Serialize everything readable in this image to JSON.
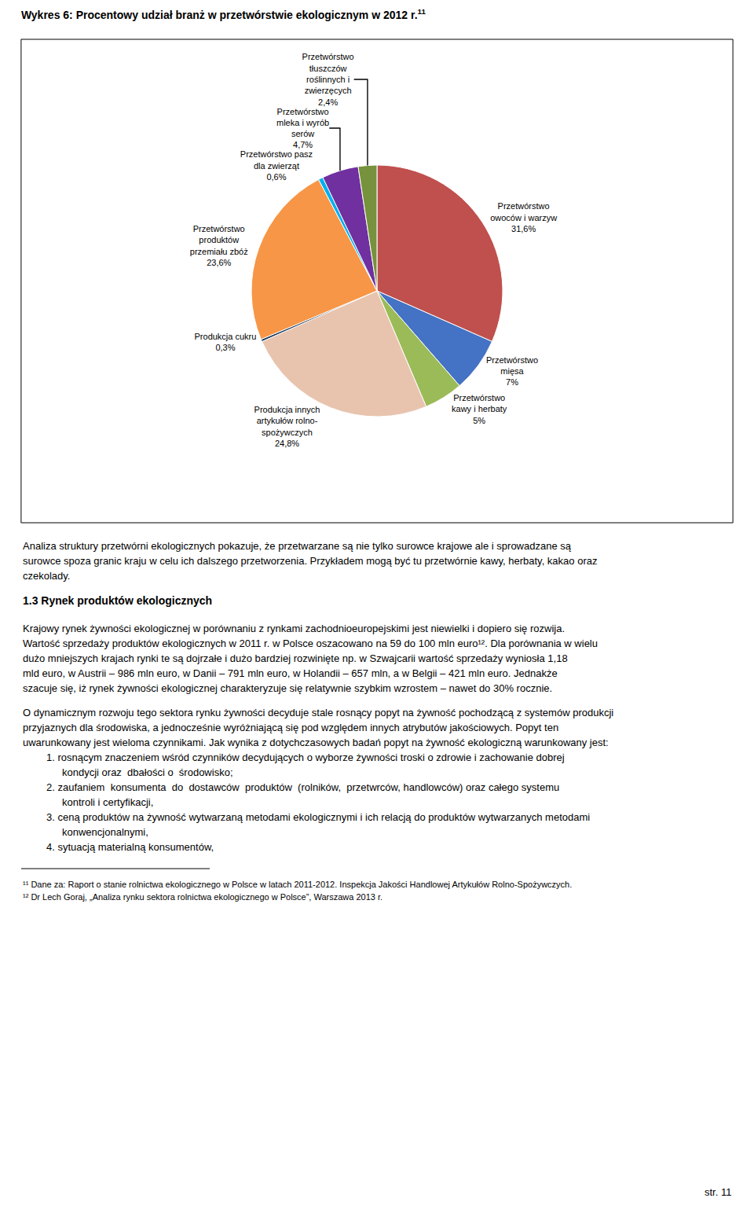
{
  "chart_data": {
    "type": "pie",
    "title": "Wykres 6: Procentowy udział branż w przetwórstwie ekologicznym w 2012 r.",
    "categories": [
      "Przetwórstwo\nowoców i warzyw",
      "Przetwórstwo\nmięsa",
      "Przetwórstwo\nkawy i herbaty",
      "Produkcja innych\nartykułów rolno-\nspożywczych",
      "Produkcja cukru",
      "Przetwórstwo\nproduktów\nprzemiału zbóż",
      "Przetwórstwo pasz\ndla zwierząt",
      "Przetwórstwo\nmleka i wyrób\nserów",
      "Przetwórstwo\ntłuszczów\nroślinnych i\nzwierzęcych"
    ],
    "values": [
      31.6,
      7.0,
      5.0,
      24.8,
      0.3,
      23.6,
      0.6,
      4.7,
      2.4
    ],
    "value_labels": [
      "31,6%",
      "7%",
      "5%",
      "24,8%",
      "0,3%",
      "23,6%",
      "0,6%",
      "4,7%",
      "2,4%"
    ],
    "colors": [
      "#C0504D",
      "#4472C4",
      "#9BBB59",
      "#E8C4AE",
      "#17375E",
      "#F79646",
      "#00B0F0",
      "#7030A0",
      "#76923C"
    ],
    "data_labels": true,
    "annotations": [
      "11",
      "Analiza struktury przetwórni ekologicznych pokazuje, że przetwarzane są nie tylko surowce krajowe ale i sprowadzane są surowce spoza granic kraju w celu ich dalszego przetworzenia. Przykładem mogą być tu przetwórnie kawy, herbaty, kakao oraz czekolady.",
      "1.3 Rynek produktów ekologicznych",
      "Krajowy rynek żywności ekologicznej w porównaniu z rynkami zachodnioeuropejskimi jest niewielki i dopiero się rozwija. Wartość sprzedaży produktów ekologicznych w 2011 r. w Polsce oszacowano na 59 do 100 mln euro¹². Dla porównania w wielu dużo mniejszych krajach rynki te są dojrzałe i dużo bardziej rozwinięte np. w Szwajcarii wartość sprzedaży wyniosła 1,18 mld euro, w Austrii – 986 mln euro, w Danii – 791 mln euro, w Holandii – 657 mln, a w Belgii – 421 mln euro. Jednakże szacuje się, iż rynek żywności ekologicznej charakteryzuje się relatywnie szybkim wzrostem – nawet do 30% rocznie.",
      "O dynamicznym rozwoju tego sektora rynku żywności decyduje stale rosnący popyt na żywność pochodzącą z systemów produkcji przyjaznych dla środowiska, a jednocześnie wyróżniającą się pod względem innych atrybutów jakościowych. Popyt ten uwarunkowany jest wieloma czynnikami. Jak wynika z dotychczasowych badań popyt na żywność ekologiczną warunkowany jest:",
      "1. rosnącym znaczeniem wśród czynników decydujących o wyborze żywności troski o zdrowie i zachowanie dobrej kondycji oraz  dbałości o  środowisko;",
      "2. zaufaniem  konsumenta  do  dostawców  produktów  (rolników,  przetwrców, handlowców) oraz całego systemu kontroli i certyfikacji,",
      "3. ceną produktów na żywność wytwarzaną metodami ekologicznymi i ich relacją do produktów wytwarzanych metodami konwencjonalnymi,",
      "4. sytuacją materialną konsumentów,",
      "¹¹ Dane za: Raport o stanie rolnictwa ekologicznego w Polsce w latach 2011-2012. Inspekcja Jakości Handlowej Artykułów Rolno-Spożywczych.",
      "¹² Dr Lech Goraj, „Analiza rynku sektora rolnictwa ekologicznego w Polsce”, Warszawa 2013 r.",
      "str. 11"
    ]
  }
}
